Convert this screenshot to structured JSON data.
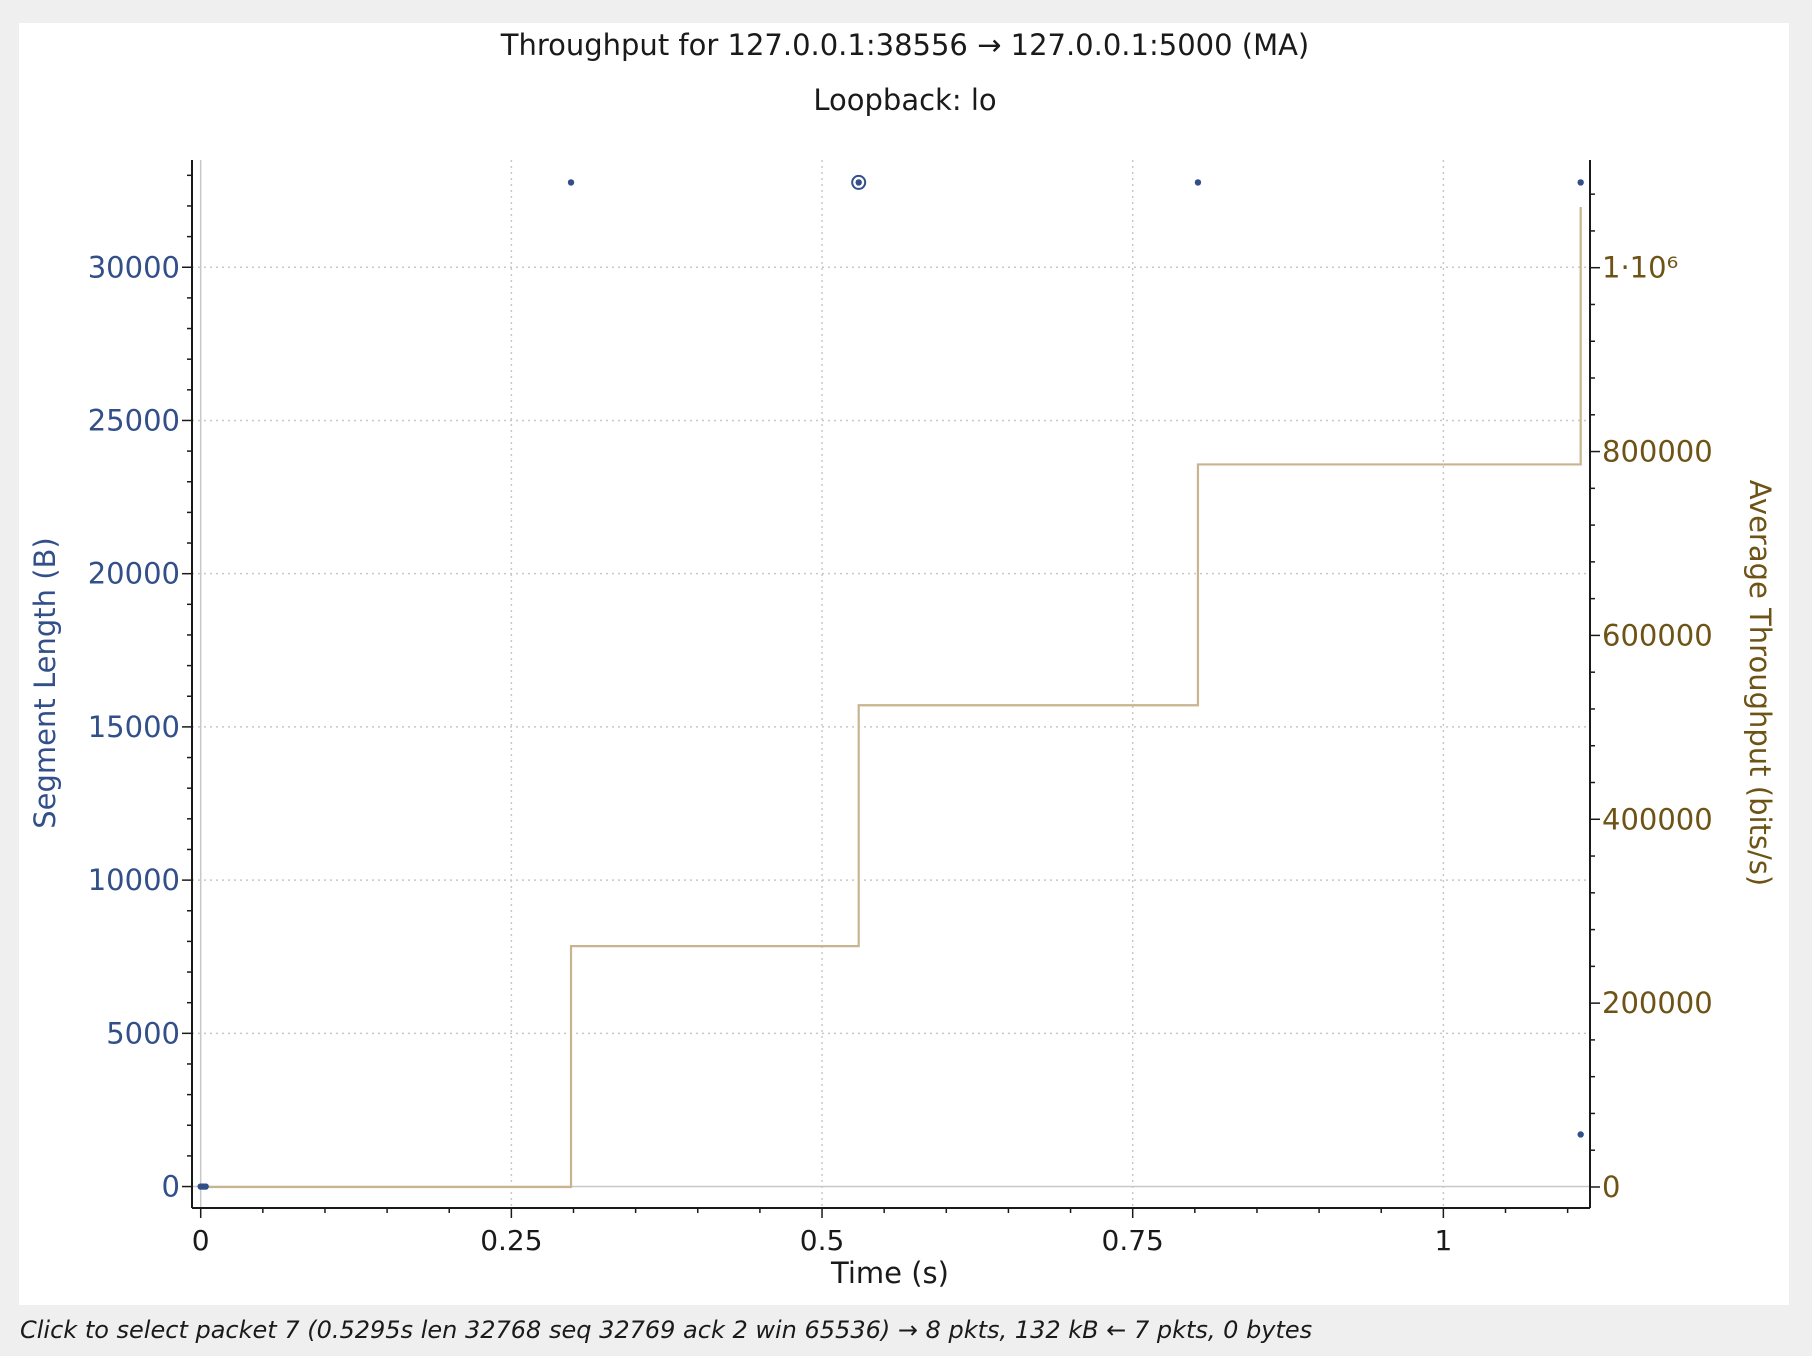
{
  "status_text": "Click to select packet 7 (0.5295s len 32768 seq 32769 ack 2 win 65536) → 8 pkts, 132 kB ← 7 pkts, 0 bytes",
  "colors": {
    "segment": "#324f8a",
    "throughput": "#c8b48e",
    "throughput_axis": "#6e5316",
    "grid": "#c8c8c8",
    "frame": "#1a1a1a"
  },
  "chart_data": {
    "type": "scatter",
    "title": "Throughput for 127.0.0.1:38556 → 127.0.0.1:5000 (MA)",
    "subtitle": "Loopback: lo",
    "xlabel": "Time (s)",
    "ylabel": "Segment Length (B)",
    "y2label": "Average Throughput (bits/s)",
    "xlim": [
      -0.007,
      1.118
    ],
    "ylim": [
      -700,
      33500
    ],
    "y2lim": [
      -22852,
      1117148
    ],
    "x_ticks": [
      0,
      0.25,
      0.5,
      0.75,
      1
    ],
    "x_tick_labels": [
      "0",
      "0.25",
      "0.5",
      "0.75",
      "1"
    ],
    "y_ticks": [
      0,
      5000,
      10000,
      15000,
      20000,
      25000,
      30000
    ],
    "y_tick_labels": [
      "0",
      "5000",
      "10000",
      "15000",
      "20000",
      "25000",
      "30000"
    ],
    "y2_ticks": [
      0,
      200000,
      400000,
      600000,
      800000,
      1000000
    ],
    "y2_tick_labels": [
      "0",
      "200000",
      "400000",
      "600000",
      "800000",
      "1·10⁶"
    ],
    "grid": true,
    "series": [
      {
        "name": "Segment Length",
        "type": "scatter",
        "axis": "left",
        "points": [
          {
            "x": 0.0,
            "y": 0
          },
          {
            "x": 0.002,
            "y": 0
          },
          {
            "x": 0.004,
            "y": 0
          },
          {
            "x": 0.298,
            "y": 32768
          },
          {
            "x": 0.5295,
            "y": 32768,
            "selected": true
          },
          {
            "x": 0.8025,
            "y": 32768
          },
          {
            "x": 1.1105,
            "y": 32768
          },
          {
            "x": 1.1105,
            "y": 1700
          }
        ]
      },
      {
        "name": "Average Throughput",
        "type": "step",
        "axis": "right",
        "points": [
          {
            "x": 0.0,
            "y": 0
          },
          {
            "x": 0.298,
            "y": 262000
          },
          {
            "x": 0.5295,
            "y": 524000
          },
          {
            "x": 0.8025,
            "y": 786000
          },
          {
            "x": 1.1105,
            "y": 1066000
          }
        ]
      }
    ]
  }
}
